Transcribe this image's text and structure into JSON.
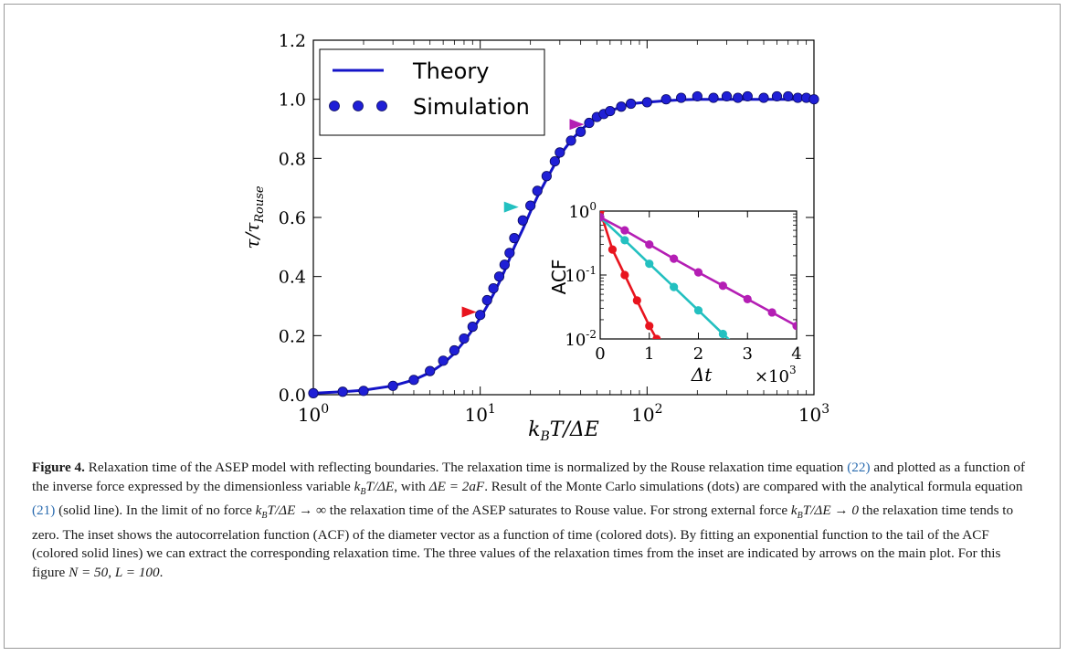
{
  "chart_data": [
    {
      "type": "line",
      "role": "main",
      "xscale": "log",
      "xlim": [
        1,
        1000
      ],
      "ylim": [
        0,
        1.2
      ],
      "xlabel": "k_B T/ΔE",
      "ylabel": "τ/τ_Rouse",
      "xticks": [
        {
          "value": 1,
          "label": "10^0"
        },
        {
          "value": 10,
          "label": "10^1"
        },
        {
          "value": 100,
          "label": "10^2"
        },
        {
          "value": 1000,
          "label": "10^3"
        }
      ],
      "yticks": [
        "0.0",
        "0.2",
        "0.4",
        "0.6",
        "0.8",
        "1.0",
        "1.2"
      ],
      "legend": {
        "placement": "top-left",
        "entries": [
          "Theory",
          "Simulation"
        ]
      },
      "series": [
        {
          "name": "Theory",
          "style": "line",
          "color": "#1414c8",
          "x": [
            1,
            1.5,
            2,
            3,
            4,
            5,
            6,
            7,
            8,
            9,
            10,
            11,
            12,
            13,
            14,
            15,
            16,
            18,
            20,
            22,
            25,
            28,
            30,
            35,
            40,
            45,
            50,
            60,
            70,
            80,
            100,
            130,
            160,
            200,
            300,
            500,
            700,
            1000
          ],
          "y": [
            0.005,
            0.01,
            0.015,
            0.03,
            0.05,
            0.075,
            0.105,
            0.14,
            0.18,
            0.22,
            0.26,
            0.3,
            0.34,
            0.38,
            0.42,
            0.46,
            0.5,
            0.56,
            0.62,
            0.67,
            0.73,
            0.78,
            0.81,
            0.86,
            0.895,
            0.92,
            0.94,
            0.96,
            0.975,
            0.985,
            0.99,
            0.995,
            0.998,
            1.0,
            1.0,
            1.0,
            1.0,
            1.0
          ]
        },
        {
          "name": "Simulation",
          "style": "markers",
          "color": "#1f1fd6",
          "x": [
            1,
            1.5,
            2,
            3,
            4,
            5,
            6,
            7,
            8,
            9,
            10,
            11,
            12,
            13,
            14,
            15,
            16,
            18,
            20,
            22,
            25,
            28,
            30,
            35,
            40,
            45,
            50,
            55,
            60,
            70,
            80,
            100,
            130,
            160,
            200,
            250,
            300,
            350,
            400,
            500,
            600,
            700,
            800,
            900,
            1000
          ],
          "y": [
            0.005,
            0.01,
            0.013,
            0.03,
            0.05,
            0.08,
            0.115,
            0.15,
            0.19,
            0.23,
            0.27,
            0.32,
            0.36,
            0.4,
            0.44,
            0.48,
            0.53,
            0.59,
            0.64,
            0.69,
            0.74,
            0.79,
            0.82,
            0.86,
            0.89,
            0.92,
            0.94,
            0.95,
            0.96,
            0.975,
            0.985,
            0.99,
            1.0,
            1.005,
            1.01,
            1.005,
            1.01,
            1.005,
            1.01,
            1.005,
            1.01,
            1.01,
            1.005,
            1.005,
            1.0
          ]
        }
      ],
      "arrows": [
        {
          "x": 9.5,
          "y": 0.28,
          "color": "#e8141e"
        },
        {
          "x": 17,
          "y": 0.635,
          "color": "#23c0c0"
        },
        {
          "x": 42,
          "y": 0.915,
          "color": "#b41eb4"
        }
      ]
    },
    {
      "type": "line",
      "role": "inset",
      "yscale": "log",
      "xlim": [
        0,
        4
      ],
      "ylim": [
        0.01,
        1
      ],
      "xlabel": "Δt",
      "ylabel": "ACF",
      "x_multiplier": "×10^3",
      "xticks": [
        "0",
        "1",
        "2",
        "3",
        "4"
      ],
      "yticks": [
        {
          "value": 1,
          "label": "10^0"
        },
        {
          "value": 0.1,
          "label": "10^-1"
        },
        {
          "value": 0.01,
          "label": "10^-2"
        }
      ],
      "series": [
        {
          "color": "#e8141e",
          "x": [
            0,
            0.25,
            0.5,
            0.75,
            1.0,
            1.15
          ],
          "y": [
            1.0,
            0.25,
            0.1,
            0.04,
            0.016,
            0.01
          ]
        },
        {
          "color": "#23c0c0",
          "x": [
            0,
            0.5,
            1.0,
            1.5,
            2.0,
            2.5,
            2.75
          ],
          "y": [
            0.8,
            0.35,
            0.15,
            0.065,
            0.028,
            0.012,
            0.008
          ]
        },
        {
          "color": "#b41eb4",
          "x": [
            0,
            0.5,
            1.0,
            1.5,
            2.0,
            2.5,
            3.0,
            3.5,
            4.0
          ],
          "y": [
            0.8,
            0.5,
            0.3,
            0.18,
            0.11,
            0.068,
            0.042,
            0.026,
            0.016
          ]
        }
      ]
    }
  ],
  "caption": {
    "label": "Figure 4.",
    "text_1": " Relaxation time of the ASEP model with reflecting boundaries. The relaxation time is normalized by the Rouse relaxation time equation ",
    "ref_22": "(22)",
    "text_2": " and plotted as a function of the inverse force expressed by the dimensionless variable ",
    "var_ratio": "k",
    "text_3": ", with ",
    "var_delta": "ΔE = 2aF",
    "text_4": ". Result of the Monte Carlo simulations (dots) are compared with the analytical formula equation ",
    "ref_21": "(21)",
    "text_5": " (solid line). In the limit of no force ",
    "lim_inf": "k",
    "text_6": " the relaxation time of the ASEP saturates to Rouse value. For strong external force ",
    "lim_zero": "k",
    "text_7": " the relaxation time tends to zero. The inset shows the autocorrelation function (ACF) of the diameter vector as a function of time (colored dots). By fitting an exponential function to the tail of the ACF (colored solid lines) we can extract the corresponding relaxation time. The three values of the relaxation times from the inset are indicated by arrows on the main plot. For this figure ",
    "params": "N = 50,  L = 100",
    "text_8": "."
  }
}
